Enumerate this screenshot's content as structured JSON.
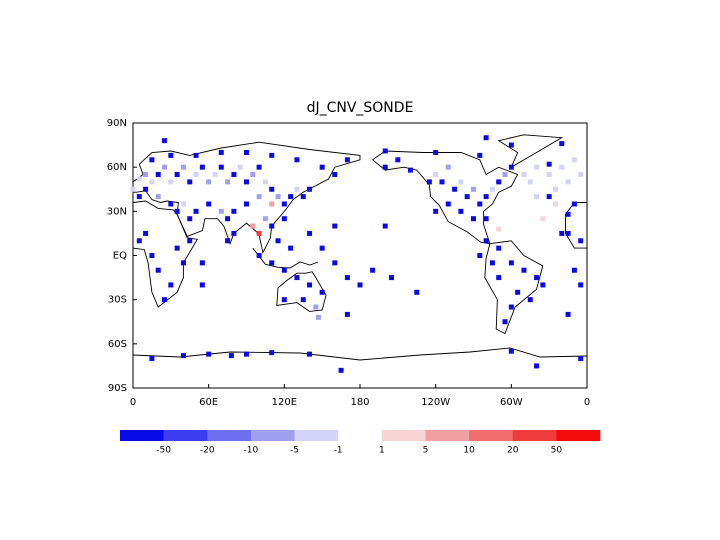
{
  "chart_data": {
    "type": "map",
    "title": "dJ_CNV_SONDE",
    "xlim": [
      0,
      360
    ],
    "ylim": [
      -90,
      90
    ],
    "xticks": [
      0,
      {
        "value": 60,
        "label": "60E"
      },
      {
        "value": 120,
        "label": "120E"
      },
      180,
      {
        "value": 240,
        "label": "120W"
      },
      {
        "value": 300,
        "label": "60W"
      },
      {
        "value": 360,
        "label": "0"
      }
    ],
    "yticks": [
      {
        "value": 90,
        "label": "90N"
      },
      {
        "value": 60,
        "label": "60N"
      },
      {
        "value": 30,
        "label": "30N"
      },
      {
        "value": 0,
        "label": "EQ"
      },
      {
        "value": -30,
        "label": "30S"
      },
      {
        "value": -60,
        "label": "60S"
      },
      {
        "value": -90,
        "label": "90S"
      }
    ],
    "colorbar": {
      "levels": [
        -50,
        -20,
        -10,
        -5,
        -1,
        1,
        5,
        10,
        20,
        50
      ],
      "colors": [
        "#0a0ae6",
        "#3c3cf0",
        "#6e6ef0",
        "#a0a0f0",
        "#d4d4f8",
        "#ffffff",
        "#f8d4d4",
        "#f0a0a0",
        "#f06e6e",
        "#f03c3c",
        "#f50a0a"
      ]
    },
    "x": [
      5,
      10,
      15,
      20,
      25,
      30,
      35,
      40,
      45,
      50,
      55,
      60,
      65,
      70,
      75,
      80,
      85,
      90,
      95,
      100,
      105,
      110,
      115,
      120,
      125,
      130,
      135,
      140,
      100,
      90,
      80,
      75,
      70,
      60,
      50,
      45,
      40,
      35,
      30,
      20,
      10,
      5,
      0,
      15,
      30,
      50,
      70,
      90,
      110,
      130,
      150,
      160,
      170,
      110,
      105,
      100,
      95,
      80,
      75,
      110,
      120,
      115,
      125,
      100,
      110,
      120,
      130,
      140,
      150,
      120,
      135,
      145,
      147,
      170,
      150,
      160,
      170,
      180,
      160,
      140,
      200,
      205,
      225,
      190,
      10,
      5,
      15,
      20,
      30,
      25,
      35,
      40,
      45,
      55,
      55,
      345,
      345,
      350,
      200,
      210,
      220,
      235,
      240,
      245,
      250,
      255,
      260,
      265,
      270,
      275,
      280,
      285,
      290,
      295,
      300,
      260,
      250,
      240,
      270,
      280,
      290,
      280,
      290,
      300,
      310,
      320,
      305,
      300,
      295,
      290,
      285,
      275,
      315,
      325,
      310,
      315,
      320,
      330,
      335,
      340,
      345,
      355,
      350,
      320,
      335,
      325,
      330,
      340,
      355,
      350,
      345,
      355,
      330,
      15,
      40,
      60,
      78,
      90,
      110,
      140,
      165,
      300,
      320,
      355,
      25,
      280,
      300,
      340,
      200,
      240,
      275
    ],
    "y": [
      52,
      55,
      50,
      55,
      60,
      50,
      55,
      60,
      50,
      55,
      60,
      50,
      55,
      60,
      50,
      55,
      60,
      50,
      55,
      60,
      50,
      45,
      40,
      35,
      40,
      45,
      40,
      45,
      40,
      35,
      30,
      25,
      30,
      35,
      30,
      25,
      35,
      30,
      35,
      40,
      45,
      40,
      45,
      65,
      68,
      68,
      70,
      70,
      68,
      65,
      60,
      55,
      65,
      35,
      25,
      15,
      20,
      15,
      10,
      20,
      25,
      10,
      5,
      0,
      -5,
      -10,
      -15,
      -20,
      -25,
      -30,
      -30,
      -35,
      -42,
      -40,
      5,
      -5,
      -15,
      -20,
      20,
      15,
      20,
      -15,
      -25,
      -10,
      15,
      10,
      0,
      -10,
      -20,
      -30,
      5,
      -5,
      10,
      -20,
      -5,
      15,
      28,
      35,
      60,
      65,
      58,
      50,
      55,
      50,
      60,
      45,
      50,
      40,
      45,
      35,
      40,
      45,
      50,
      55,
      60,
      30,
      35,
      30,
      25,
      25,
      18,
      10,
      5,
      -5,
      -10,
      -15,
      -25,
      -35,
      -45,
      -15,
      -5,
      0,
      -30,
      -20,
      55,
      50,
      60,
      55,
      45,
      60,
      50,
      55,
      65,
      40,
      35,
      25,
      62,
      15,
      10,
      -10,
      -40,
      -20,
      40,
      -70,
      -68,
      -67,
      -68,
      -67,
      -66,
      -67,
      -78,
      -65,
      -75,
      -70,
      78,
      80,
      75,
      76,
      71,
      70,
      68
    ],
    "values": [
      -3,
      -8,
      -3,
      -60,
      -8,
      -3,
      -60,
      -8,
      -60,
      -3,
      -60,
      -8,
      -3,
      -60,
      -8,
      -60,
      -3,
      -60,
      -8,
      -60,
      -3,
      -60,
      -8,
      -60,
      -60,
      -3,
      -60,
      -60,
      -8,
      -60,
      -60,
      -60,
      -8,
      -60,
      -60,
      -60,
      -3,
      -60,
      -60,
      -8,
      -60,
      -60,
      -3,
      -60,
      -60,
      -60,
      -60,
      -60,
      -60,
      -60,
      -60,
      -60,
      -60,
      8,
      -8,
      30,
      8,
      -60,
      -60,
      -60,
      -60,
      -60,
      -60,
      -60,
      -60,
      -60,
      -60,
      -60,
      -60,
      -60,
      -60,
      -8,
      -8,
      -60,
      -60,
      -60,
      -60,
      -60,
      -60,
      -60,
      -60,
      -60,
      -60,
      -60,
      -60,
      -60,
      -60,
      -60,
      -60,
      -60,
      -60,
      -60,
      -60,
      -60,
      -60,
      -60,
      -60,
      -60,
      -60,
      -60,
      -60,
      -60,
      -3,
      -60,
      -8,
      -60,
      -3,
      -60,
      -8,
      -60,
      -60,
      -3,
      -60,
      -8,
      -60,
      -60,
      -60,
      -60,
      -60,
      -60,
      3,
      -60,
      -60,
      -60,
      -60,
      -60,
      -60,
      -60,
      -60,
      -60,
      -60,
      -60,
      -60,
      -60,
      -3,
      -3,
      -3,
      -3,
      -3,
      -3,
      -3,
      -3,
      -3,
      -3,
      3,
      3,
      -60,
      -60,
      -60,
      -60,
      -60,
      -60,
      -60,
      -60,
      -60,
      -60,
      -60,
      -60,
      -60,
      -60,
      -60,
      -60,
      -60,
      -60,
      -60,
      -60,
      -60,
      -60,
      -60,
      -60,
      -60
    ]
  }
}
